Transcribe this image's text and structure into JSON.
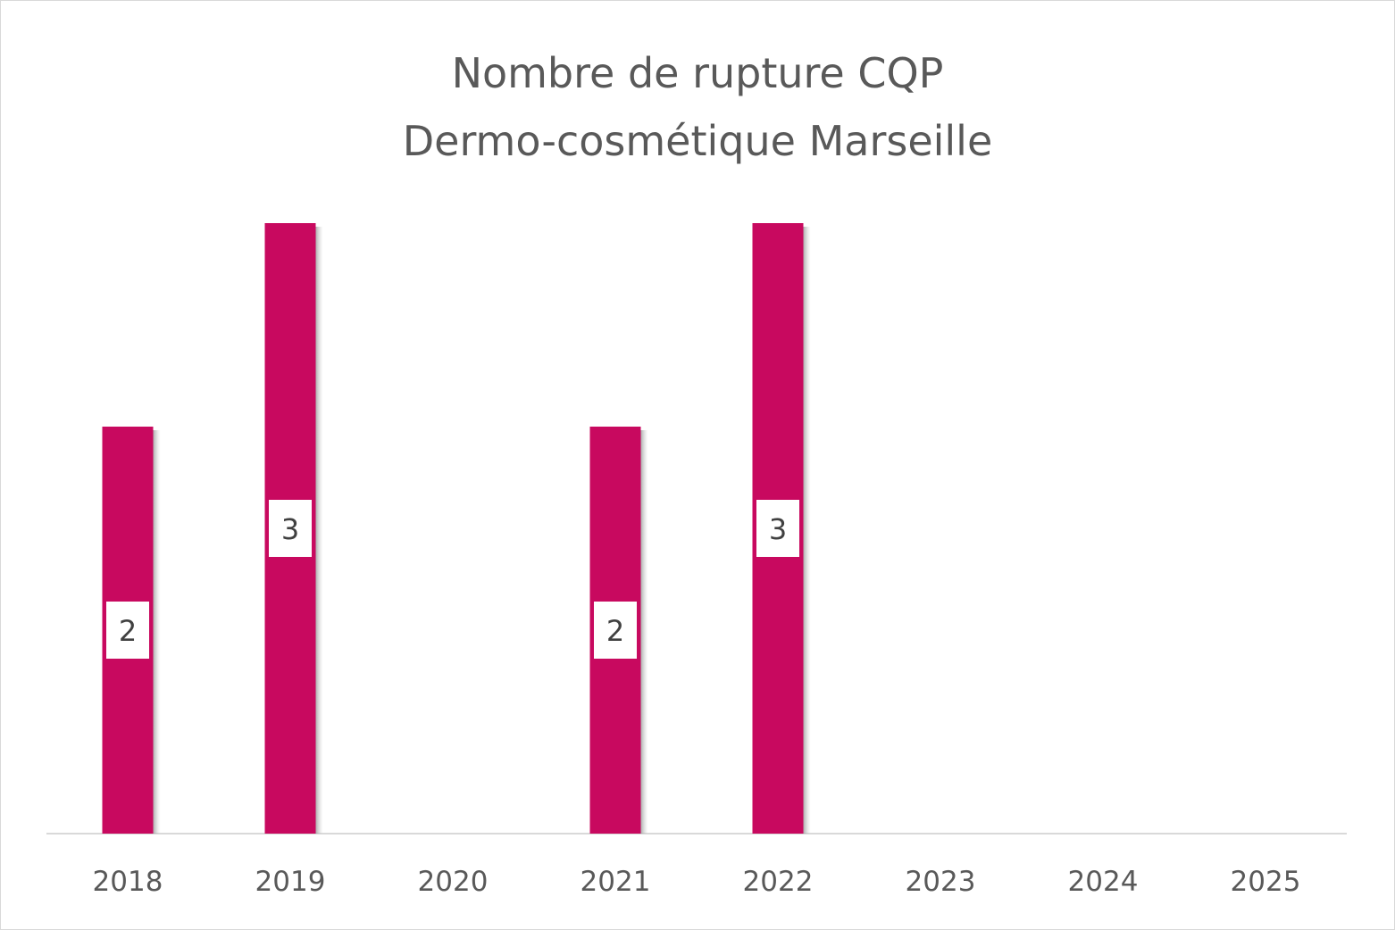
{
  "chart_data": {
    "type": "bar",
    "title": [
      "Nombre de rupture CQP",
      "Dermo-cosmétique Marseille"
    ],
    "categories": [
      "2018",
      "2019",
      "2020",
      "2021",
      "2022",
      "2023",
      "2024",
      "2025"
    ],
    "values": [
      2,
      3,
      null,
      2,
      3,
      null,
      null,
      null
    ],
    "data_labels": [
      "2",
      "3",
      "",
      "2",
      "3",
      "",
      "",
      ""
    ],
    "ylim": [
      0,
      3
    ],
    "grid": false,
    "y_axis_visible": false,
    "legend": "none",
    "colors": {
      "bar": "#C8095F",
      "text": "#595959",
      "label_text": "#404040",
      "axis": "#d9d9d9"
    }
  }
}
